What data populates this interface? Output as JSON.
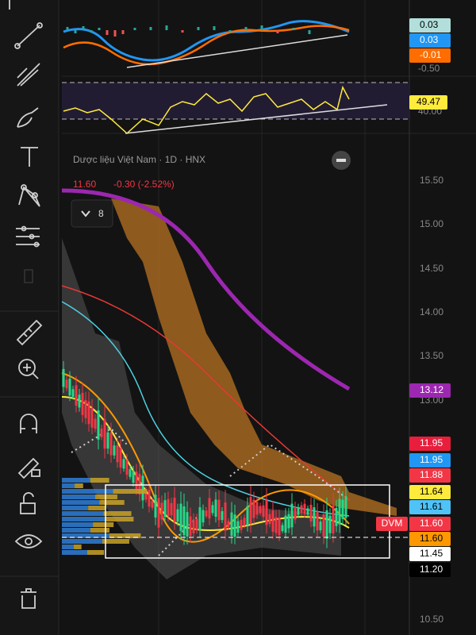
{
  "macd": {
    "labels": [
      {
        "text": "0.03",
        "bg": "#b2dfdb",
        "fg": "#000000"
      },
      {
        "text": "0.03",
        "bg": "#2196f3",
        "fg": "#ffffff"
      },
      {
        "text": "-0.01",
        "bg": "#ff6d00",
        "fg": "#ffffff"
      }
    ],
    "axis": "-0.50"
  },
  "rsi": {
    "value": "49.47",
    "level": "40.00"
  },
  "chart": {
    "title": "Dược liệu Việt Nam · 1D · HNX",
    "last": "11.60",
    "change": "-0.30 (-2.52%)",
    "collapsed": "8",
    "price_axis": [
      "15.50",
      "15.00",
      "14.50",
      "14.00",
      "13.50",
      "13.00",
      "10.50"
    ],
    "price_tags": [
      {
        "text": "13.12",
        "bg": "#9c27b0",
        "fg": "#ffffff"
      },
      {
        "text": "11.95",
        "bg": "#e91e3c",
        "fg": "#ffffff"
      },
      {
        "text": "11.95",
        "bg": "#2196f3",
        "fg": "#ffffff"
      },
      {
        "text": "11.88",
        "bg": "#f23645",
        "fg": "#ffffff"
      },
      {
        "text": "11.64",
        "bg": "#ffeb3b",
        "fg": "#000000"
      },
      {
        "text": "11.61",
        "bg": "#4fc3f7",
        "fg": "#000000"
      },
      {
        "text": "11.60",
        "bg": "#f23645",
        "fg": "#ffffff",
        "tag": "DVM"
      },
      {
        "text": "11.60",
        "bg": "#ff9800",
        "fg": "#000000"
      },
      {
        "text": "11.45",
        "bg": "#ffffff",
        "fg": "#000000"
      },
      {
        "text": "11.20",
        "bg": "#000000",
        "fg": "#ffffff"
      }
    ]
  }
}
